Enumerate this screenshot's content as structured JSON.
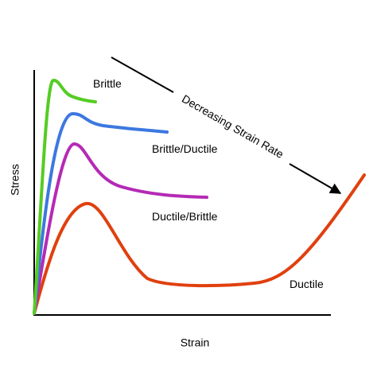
{
  "labels": {
    "brittle": "Brittle",
    "brittle_ductile": "Brittle/Ductile",
    "ductile_brittle": "Ductile/Brittle",
    "ductile": "Ductile"
  },
  "arrow_label": "Decreasing Strain Rate",
  "axes": {
    "y_label": "Stress",
    "x_label": "Strain"
  }
}
